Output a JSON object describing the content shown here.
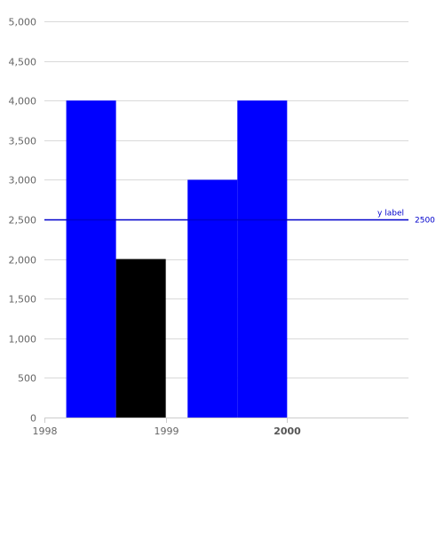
{
  "chart_data": {
    "type": "bar",
    "x_axis": {
      "type": "datetime",
      "min": 1998,
      "max": 2001,
      "ticks": [
        {
          "value": 1998,
          "label": "1998",
          "bold": false
        },
        {
          "value": 1999,
          "label": "1999",
          "bold": false
        },
        {
          "value": 2000,
          "label": "2000",
          "bold": true
        }
      ]
    },
    "y_axis": {
      "min": 0,
      "max": 5000,
      "ticks": [
        {
          "value": 0,
          "label": "0"
        },
        {
          "value": 500,
          "label": "500"
        },
        {
          "value": 1000,
          "label": "1,000"
        },
        {
          "value": 1500,
          "label": "1,500"
        },
        {
          "value": 2000,
          "label": "2,000"
        },
        {
          "value": 2500,
          "label": "2,500"
        },
        {
          "value": 3000,
          "label": "3,000"
        },
        {
          "value": 3500,
          "label": "3,500"
        },
        {
          "value": 4000,
          "label": "4,000"
        },
        {
          "value": 4500,
          "label": "4,500"
        },
        {
          "value": 5000,
          "label": "5,000"
        }
      ],
      "grid": true
    },
    "bars": [
      {
        "x_start": 1998.18,
        "x_end": 1998.59,
        "value": 4000,
        "color": "#0000ff"
      },
      {
        "x_start": 1998.59,
        "x_end": 1999.0,
        "value": 2000,
        "color": "#000000"
      },
      {
        "x_start": 1999.18,
        "x_end": 1999.59,
        "value": 3000,
        "color": "#0000ff"
      },
      {
        "x_start": 1999.59,
        "x_end": 2000.0,
        "value": 4000,
        "color": "#0000ff"
      }
    ],
    "reference_line": {
      "value": 2500,
      "label": "y label",
      "value_label": "2500",
      "color": "#0000cc"
    },
    "grid_color": "#d9d9d9",
    "axis_color": "#cccccc"
  }
}
